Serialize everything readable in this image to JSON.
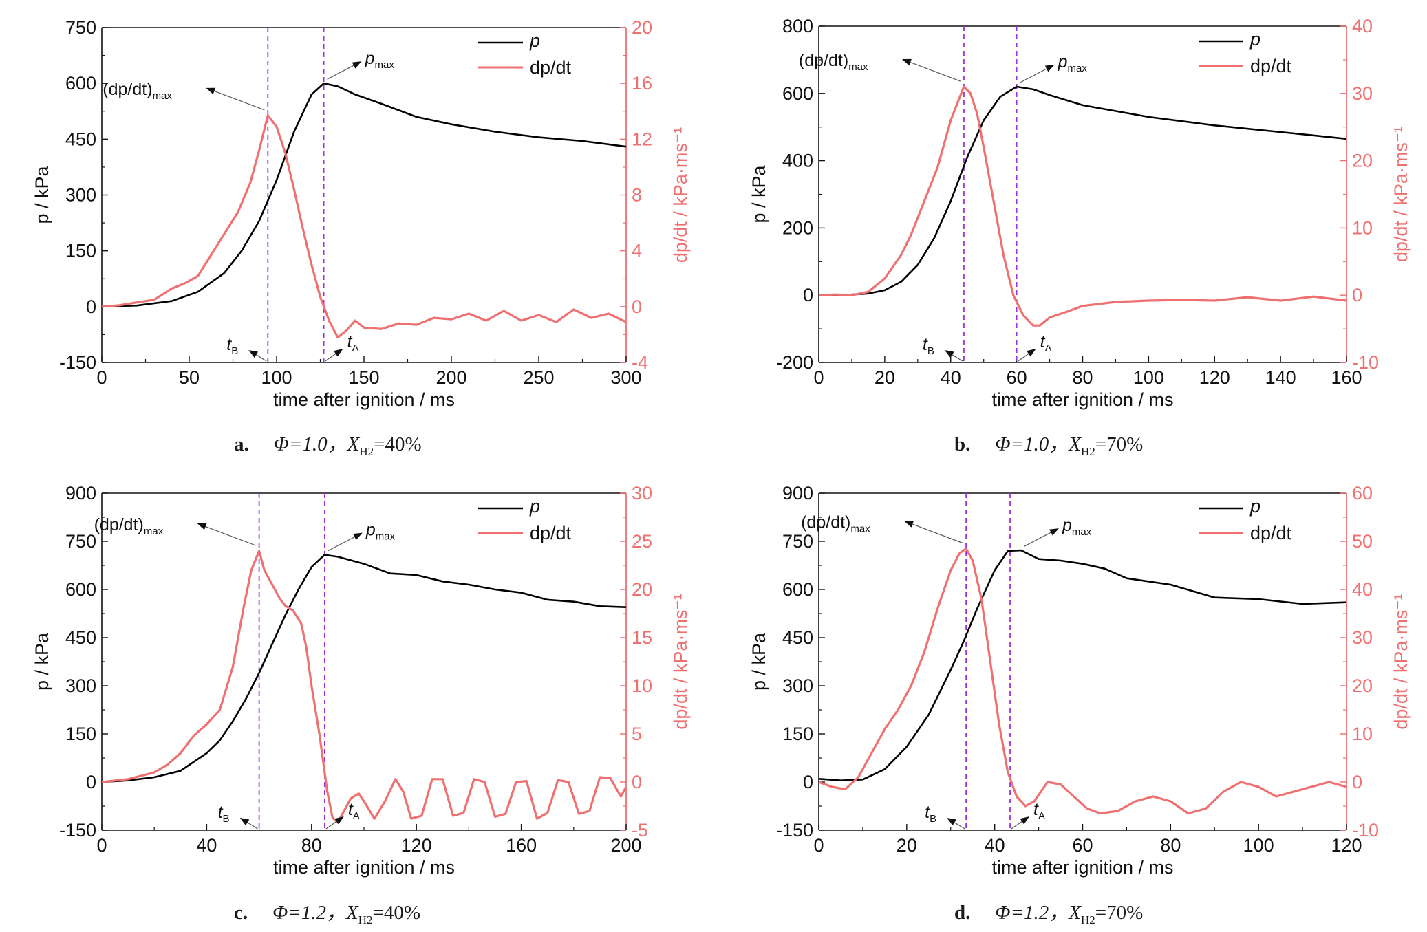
{
  "colors": {
    "p": "#000000",
    "dpdt": "#ee7070",
    "marker_line": "#9a32e0",
    "axis": "#111111",
    "right_axis": "#ee7070"
  },
  "common": {
    "xlabel": "time after ignition / ms",
    "ylabel_left": "p / kPa",
    "ylabel_right": "dp/dt / kPa·ms⁻¹",
    "legend_p": "p",
    "legend_dpdt": "dp/dt",
    "annot_dpdt_max": "(dp/dt)max",
    "annot_pmax": "pmax",
    "annot_tB": "tB",
    "annot_tA": "tA"
  },
  "captions": [
    {
      "label": "a.",
      "text": "Φ=1.0，X",
      "sub": "H2",
      "tail": "=40%"
    },
    {
      "label": "b.",
      "text": "Φ=1.0，X",
      "sub": "H2",
      "tail": "=70%"
    },
    {
      "label": "c.",
      "text": "Φ=1.2，X",
      "sub": "H2",
      "tail": "=40%"
    },
    {
      "label": "d.",
      "text": "Φ=1.2，X",
      "sub": "H2",
      "tail": "=70%"
    }
  ],
  "chart_data": [
    {
      "id": "a",
      "type": "line",
      "xlim": [
        0,
        300
      ],
      "xticks": [
        0,
        50,
        100,
        150,
        200,
        250,
        300
      ],
      "ylim_left": [
        -150,
        750
      ],
      "yticks_left": [
        -150,
        0,
        150,
        300,
        450,
        600,
        750
      ],
      "ylim_right": [
        -4,
        20
      ],
      "yticks_right": [
        -4,
        0,
        4,
        8,
        12,
        16,
        20
      ],
      "tB": 95,
      "tA": 127,
      "series": [
        {
          "name": "p",
          "axis": "left",
          "x": [
            0,
            20,
            40,
            55,
            70,
            80,
            90,
            100,
            110,
            120,
            127,
            135,
            145,
            160,
            180,
            200,
            225,
            250,
            275,
            300
          ],
          "y": [
            0,
            3,
            15,
            40,
            90,
            150,
            230,
            340,
            470,
            570,
            600,
            592,
            570,
            545,
            510,
            490,
            470,
            455,
            445,
            430
          ]
        },
        {
          "name": "dp/dt",
          "axis": "right",
          "x": [
            0,
            10,
            20,
            30,
            40,
            48,
            55,
            62,
            70,
            78,
            85,
            90,
            95,
            100,
            105,
            110,
            115,
            120,
            125,
            130,
            135,
            140,
            145,
            150,
            160,
            170,
            180,
            190,
            200,
            210,
            220,
            230,
            240,
            250,
            260,
            270,
            280,
            290,
            300
          ],
          "y": [
            0,
            0.1,
            0.3,
            0.5,
            1.3,
            1.7,
            2.2,
            3.6,
            5.2,
            6.8,
            8.9,
            11.2,
            13.7,
            12.9,
            11.0,
            8.4,
            5.6,
            3.0,
            0.7,
            -1.0,
            -2.2,
            -1.7,
            -1.0,
            -1.5,
            -1.6,
            -1.2,
            -1.3,
            -0.8,
            -0.9,
            -0.5,
            -1.0,
            -0.3,
            -1.0,
            -0.6,
            -1.1,
            -0.2,
            -0.8,
            -0.5,
            -1.1
          ]
        }
      ]
    },
    {
      "id": "b",
      "type": "line",
      "xlim": [
        0,
        160
      ],
      "xticks": [
        0,
        20,
        40,
        60,
        80,
        100,
        120,
        140,
        160
      ],
      "ylim_left": [
        -200,
        800
      ],
      "yticks_left": [
        -200,
        0,
        200,
        400,
        600,
        800
      ],
      "ylim_right": [
        -10,
        40
      ],
      "yticks_right": [
        -10,
        0,
        10,
        20,
        30,
        40
      ],
      "tB": 44,
      "tA": 60,
      "series": [
        {
          "name": "p",
          "axis": "left",
          "x": [
            0,
            10,
            15,
            20,
            25,
            30,
            35,
            40,
            45,
            50,
            55,
            60,
            65,
            70,
            80,
            100,
            120,
            140,
            160
          ],
          "y": [
            0,
            2,
            5,
            15,
            40,
            90,
            170,
            280,
            410,
            520,
            590,
            620,
            612,
            595,
            565,
            530,
            505,
            485,
            465
          ]
        },
        {
          "name": "dp/dt",
          "axis": "right",
          "x": [
            0,
            5,
            10,
            15,
            20,
            25,
            28,
            32,
            36,
            40,
            42,
            44,
            46,
            48,
            50,
            53,
            56,
            59,
            62,
            65,
            67,
            70,
            75,
            80,
            90,
            100,
            110,
            120,
            130,
            140,
            150,
            160
          ],
          "y": [
            0,
            0.1,
            0,
            0.5,
            2.5,
            6,
            9,
            14,
            19,
            26,
            28.5,
            31,
            30,
            27,
            22,
            14,
            6,
            0,
            -3,
            -4.5,
            -4.5,
            -3.3,
            -2.5,
            -1.6,
            -1.0,
            -0.8,
            -0.7,
            -0.8,
            -0.3,
            -0.8,
            -0.2,
            -0.8
          ]
        }
      ]
    },
    {
      "id": "c",
      "type": "line",
      "xlim": [
        0,
        200
      ],
      "xticks": [
        0,
        40,
        80,
        120,
        160,
        200
      ],
      "ylim_left": [
        -150,
        900
      ],
      "yticks_left": [
        -150,
        0,
        150,
        300,
        450,
        600,
        750,
        900
      ],
      "ylim_right": [
        -5,
        30
      ],
      "yticks_right": [
        -5,
        0,
        5,
        10,
        15,
        20,
        25,
        30
      ],
      "tB": 60,
      "tA": 85,
      "series": [
        {
          "name": "p",
          "axis": "left",
          "x": [
            0,
            10,
            20,
            30,
            40,
            45,
            50,
            55,
            60,
            65,
            70,
            75,
            80,
            85,
            90,
            100,
            110,
            120,
            130,
            140,
            150,
            160,
            170,
            180,
            190,
            200
          ],
          "y": [
            0,
            5,
            15,
            35,
            90,
            130,
            190,
            260,
            340,
            430,
            520,
            600,
            670,
            708,
            702,
            680,
            650,
            645,
            625,
            615,
            600,
            590,
            568,
            562,
            548,
            545
          ]
        },
        {
          "name": "dp/dt",
          "axis": "right",
          "x": [
            0,
            10,
            20,
            25,
            30,
            35,
            40,
            45,
            50,
            54,
            57,
            60,
            62,
            65,
            68,
            70,
            73,
            76,
            78,
            80,
            83,
            86,
            88,
            90,
            92,
            95,
            98,
            100,
            104,
            108,
            112,
            115,
            118,
            122,
            126,
            130,
            134,
            138,
            142,
            146,
            150,
            154,
            158,
            162,
            166,
            170,
            174,
            178,
            182,
            186,
            190,
            194,
            198,
            200
          ],
          "y": [
            0,
            0.3,
            1.0,
            1.8,
            3.0,
            4.8,
            6.0,
            7.5,
            12,
            18,
            22,
            24,
            22,
            20.5,
            19,
            18.3,
            17.8,
            16.5,
            14,
            10,
            5,
            -1,
            -3.7,
            -4.2,
            -3.2,
            -1.7,
            -1.2,
            -2.0,
            -3.8,
            -2.0,
            0.3,
            -1.0,
            -3.8,
            -3.5,
            0.3,
            0.3,
            -3.5,
            -3.2,
            0.3,
            0.0,
            -3.6,
            -3.3,
            0.0,
            0.1,
            -3.8,
            -3.2,
            0.2,
            0.0,
            -3.3,
            -3.0,
            0.5,
            0.4,
            -1.5,
            -0.5
          ]
        }
      ]
    },
    {
      "id": "d",
      "type": "line",
      "xlim": [
        0,
        120
      ],
      "xticks": [
        0,
        20,
        40,
        60,
        80,
        100,
        120
      ],
      "ylim_left": [
        -150,
        900
      ],
      "yticks_left": [
        -150,
        0,
        150,
        300,
        450,
        600,
        750,
        900
      ],
      "ylim_right": [
        -10,
        60
      ],
      "yticks_right": [
        -10,
        0,
        10,
        20,
        30,
        40,
        50,
        60
      ],
      "tB": 33.5,
      "tA": 43.5,
      "series": [
        {
          "name": "p",
          "axis": "left",
          "x": [
            0,
            5,
            10,
            15,
            20,
            25,
            30,
            33,
            36,
            40,
            43,
            46,
            50,
            55,
            60,
            65,
            70,
            80,
            90,
            100,
            110,
            120
          ],
          "y": [
            10,
            5,
            8,
            40,
            110,
            210,
            350,
            440,
            540,
            660,
            720,
            722,
            695,
            690,
            680,
            665,
            635,
            615,
            575,
            570,
            555,
            560
          ]
        },
        {
          "name": "dp/dt",
          "axis": "right",
          "x": [
            0,
            3,
            6,
            9,
            12,
            15,
            18,
            21,
            24,
            27,
            30,
            32,
            33.5,
            35,
            37,
            39,
            41,
            43,
            45,
            47,
            49,
            52,
            55,
            58,
            61,
            64,
            68,
            72,
            76,
            80,
            84,
            88,
            92,
            96,
            100,
            104,
            108,
            112,
            116,
            120
          ],
          "y": [
            0,
            -1.0,
            -1.5,
            1,
            6,
            11,
            15,
            20,
            27,
            36,
            44,
            47.5,
            48.5,
            46,
            38,
            25,
            12,
            2,
            -3,
            -5,
            -4,
            0,
            -0.5,
            -3,
            -5.5,
            -6.5,
            -6,
            -4,
            -3,
            -4,
            -6.5,
            -5.5,
            -2,
            0,
            -1,
            -3,
            -2,
            -1,
            0,
            -1
          ]
        }
      ]
    }
  ]
}
